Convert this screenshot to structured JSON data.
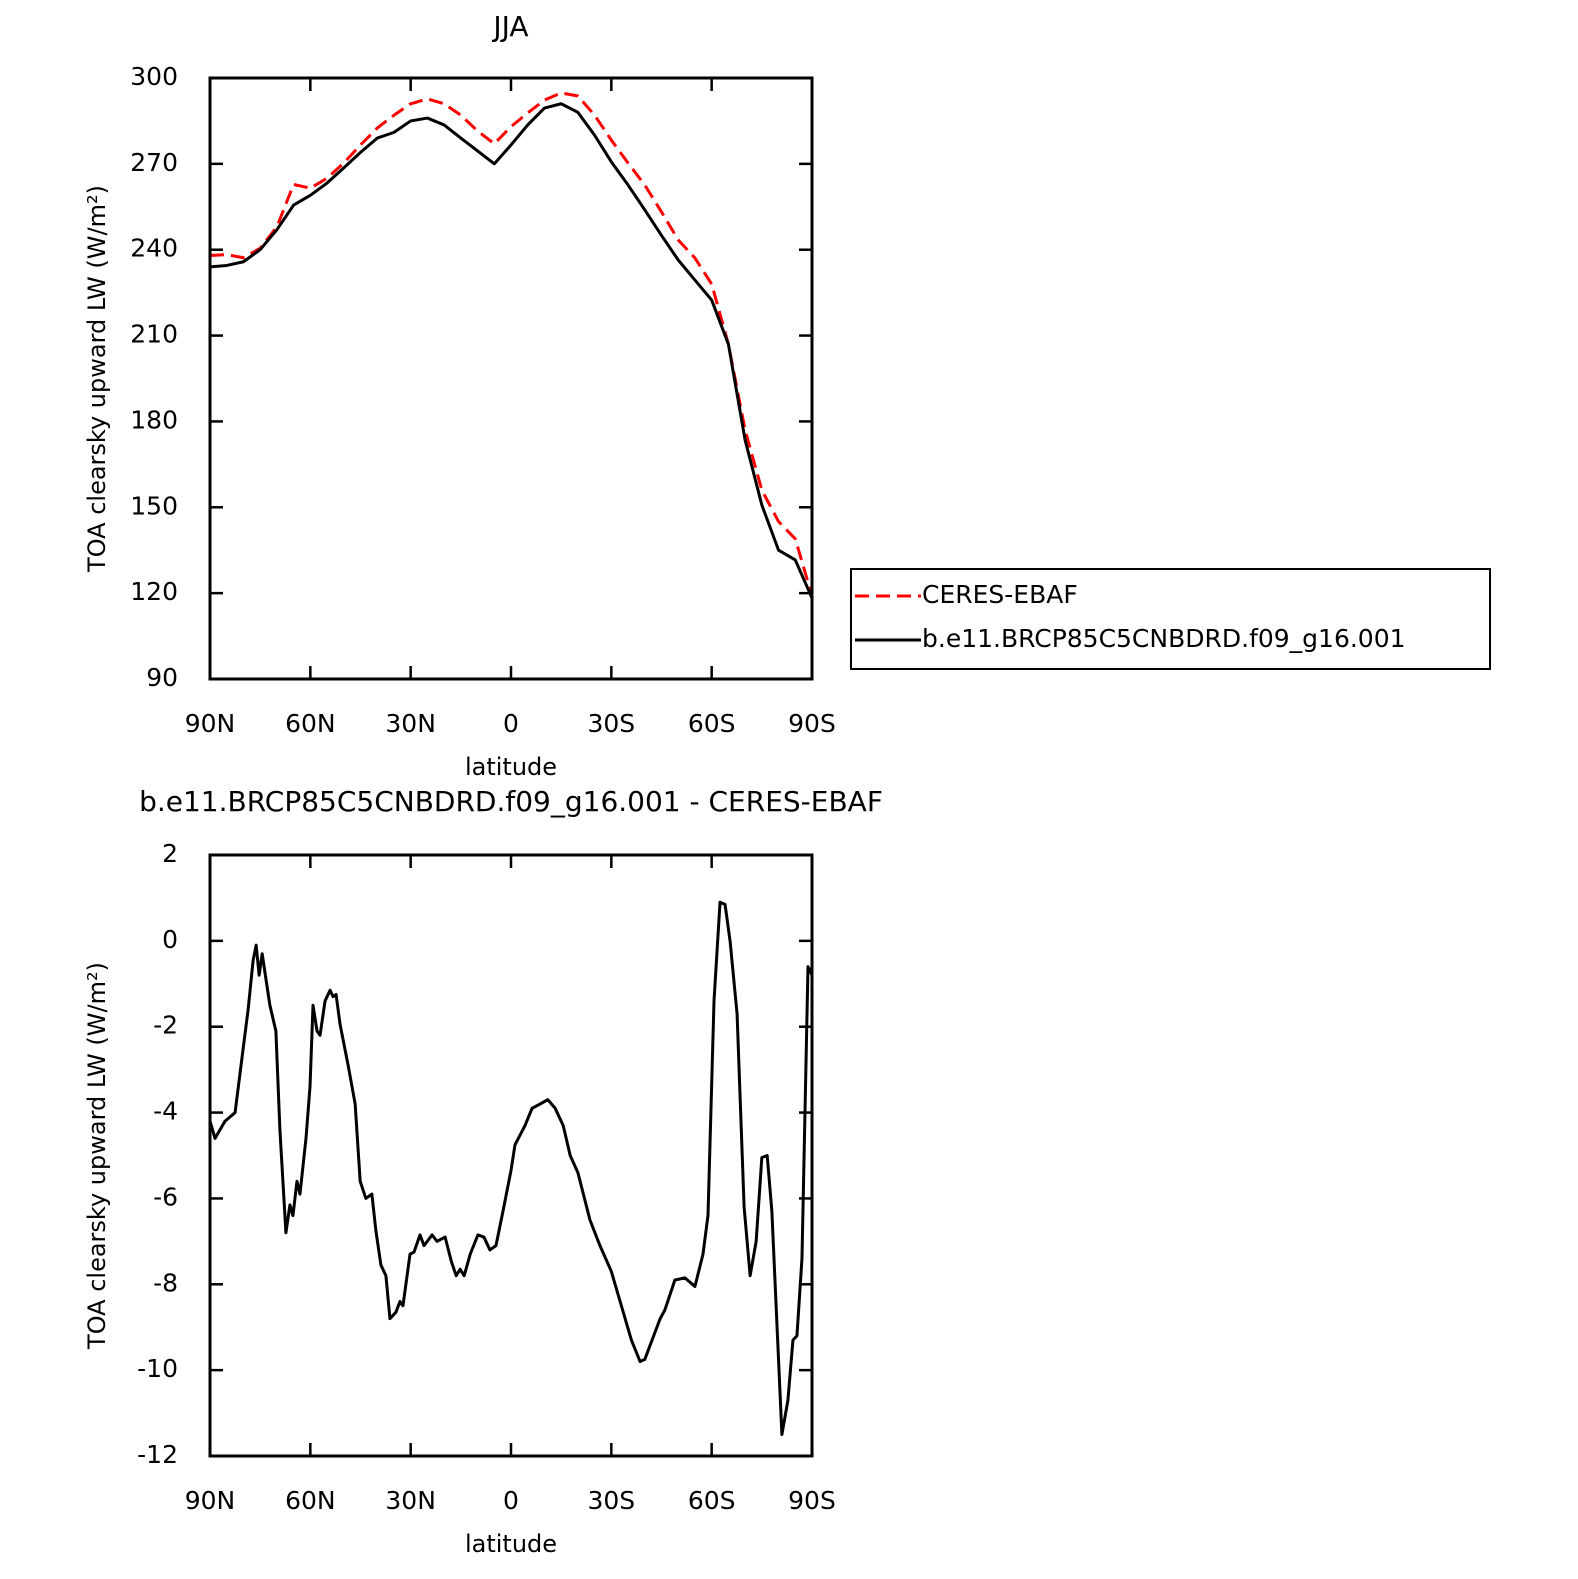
{
  "chart_data": [
    {
      "type": "line",
      "title": "JJA",
      "x_label": "latitude",
      "y_label": "TOA clearsky upward LW (W/m²)",
      "xlim": [
        90,
        -90
      ],
      "xticks": [
        {
          "value": 90,
          "label": "90N"
        },
        {
          "value": 60,
          "label": "60N"
        },
        {
          "value": 30,
          "label": "30N"
        },
        0,
        {
          "value": -30,
          "label": "30S"
        },
        {
          "value": -60,
          "label": "60S"
        },
        {
          "value": -90,
          "label": "90S"
        }
      ],
      "ylim": [
        90,
        300
      ],
      "yticks": [
        90,
        120,
        150,
        180,
        210,
        240,
        270,
        300
      ],
      "legend": "right",
      "x": [
        90,
        85,
        80,
        75,
        70,
        65,
        60,
        55,
        50,
        45,
        40,
        35,
        30,
        25,
        20,
        15,
        10,
        5,
        0,
        -5,
        -10,
        -15,
        -20,
        -25,
        -30,
        -35,
        -40,
        -45,
        -50,
        -55,
        -60,
        -65,
        -70,
        -75,
        -80,
        -85,
        -90
      ],
      "series": [
        {
          "name": "CERES-EBAF",
          "color": "#ff0000",
          "dashed": true,
          "values": [
            238,
            238.3,
            237.2,
            240.5,
            248,
            262.8,
            261.5,
            265,
            270.3,
            276.6,
            282.5,
            287,
            291,
            292.7,
            291,
            287,
            281.5,
            277,
            283,
            287.8,
            292.3,
            294.8,
            293.7,
            287,
            278.3,
            270.3,
            262.6,
            253.2,
            243.4,
            237.1,
            228,
            207,
            177,
            156,
            145,
            139,
            119
          ]
        },
        {
          "name": "b.e11.BRCP85C5CNBDRD.f09_g16.001",
          "color": "#000000",
          "dashed": false,
          "values": [
            234,
            234.5,
            235.8,
            240,
            247,
            255.6,
            259,
            263.3,
            268.6,
            274,
            279,
            281,
            285,
            286,
            283.6,
            279,
            274.5,
            270,
            276.6,
            283.6,
            289.5,
            291,
            288,
            280,
            270.7,
            262.6,
            253.9,
            245,
            236.4,
            229.4,
            222.4,
            207,
            173.5,
            150.8,
            135,
            131.6,
            118.3
          ]
        }
      ]
    },
    {
      "type": "line",
      "title": "b.e11.BRCP85C5CNBDRD.f09_g16.001 - CERES-EBAF",
      "x_label": "latitude",
      "y_label": "TOA clearsky upward LW (W/m²)",
      "xlim": [
        90,
        -90
      ],
      "xticks": [
        {
          "value": 90,
          "label": "90N"
        },
        {
          "value": 60,
          "label": "60N"
        },
        {
          "value": 30,
          "label": "30N"
        },
        0,
        {
          "value": -30,
          "label": "30S"
        },
        {
          "value": -60,
          "label": "60S"
        },
        {
          "value": -90,
          "label": "90S"
        }
      ],
      "ylim": [
        -12,
        2
      ],
      "yticks": [
        -12,
        -10,
        -8,
        -6,
        -4,
        -2,
        0,
        2
      ],
      "x": [
        90,
        88.5,
        85.5,
        82.5,
        80.4,
        78.6,
        77.1,
        76.2,
        75.3,
        74.4,
        72.1,
        70.3,
        69.1,
        67.3,
        66.1,
        65.2,
        64,
        63.1,
        61.3,
        60.1,
        59.2,
        58,
        57.1,
        55.6,
        54.1,
        53.2,
        52.3,
        51.1,
        48.7,
        46.6,
        45.1,
        43.4,
        41.6,
        40.4,
        38.9,
        37.4,
        36.2,
        34.4,
        33.2,
        32.3,
        30.2,
        29,
        27.2,
        26,
        23.6,
        22.1,
        19.7,
        17.9,
        16.4,
        15.2,
        14,
        12.2,
        9.9,
        8.1,
        6.3,
        4.5,
        2.4,
        0,
        -1.2,
        -4.2,
        -6.3,
        -8.7,
        -11,
        -13.2,
        -15.6,
        -17.7,
        -20,
        -23.6,
        -26.6,
        -30,
        -33,
        -36,
        -38.6,
        -40,
        -44.6,
        -46,
        -49,
        -52,
        -55,
        -57.4,
        -58.9,
        -60.7,
        -62.5,
        -64,
        -65.5,
        -67.6,
        -69.7,
        -71.5,
        -73.3,
        -75,
        -76.6,
        -78,
        -81,
        -82.8,
        -84.3,
        -85.5,
        -87,
        -88.8,
        -90
      ],
      "series": [
        {
          "color": "#000000",
          "values": [
            -4.2,
            -4.6,
            -4.2,
            -4.0,
            -2.7,
            -1.6,
            -0.45,
            -0.1,
            -0.8,
            -0.3,
            -1.5,
            -2.1,
            -4.4,
            -6.8,
            -6.15,
            -6.4,
            -5.6,
            -5.9,
            -4.6,
            -3.4,
            -1.5,
            -2.1,
            -2.2,
            -1.4,
            -1.15,
            -1.3,
            -1.25,
            -1.95,
            -2.9,
            -3.8,
            -5.6,
            -6.0,
            -5.9,
            -6.75,
            -7.55,
            -7.8,
            -8.8,
            -8.65,
            -8.4,
            -8.5,
            -7.3,
            -7.25,
            -6.85,
            -7.1,
            -6.85,
            -7.0,
            -6.9,
            -7.45,
            -7.8,
            -7.65,
            -7.8,
            -7.3,
            -6.85,
            -6.9,
            -7.2,
            -7.1,
            -6.3,
            -5.35,
            -4.75,
            -4.3,
            -3.9,
            -3.8,
            -3.7,
            -3.9,
            -4.3,
            -5.0,
            -5.4,
            -6.5,
            -7.1,
            -7.7,
            -8.5,
            -9.3,
            -9.8,
            -9.75,
            -8.8,
            -8.6,
            -7.9,
            -7.85,
            -8.05,
            -7.3,
            -6.4,
            -1.4,
            0.9,
            0.85,
            0.0,
            -1.7,
            -6.2,
            -7.8,
            -7.0,
            -5.05,
            -5.0,
            -6.3,
            -11.5,
            -10.7,
            -9.3,
            -9.2,
            -7.4,
            -0.6,
            -0.8
          ]
        }
      ]
    }
  ]
}
